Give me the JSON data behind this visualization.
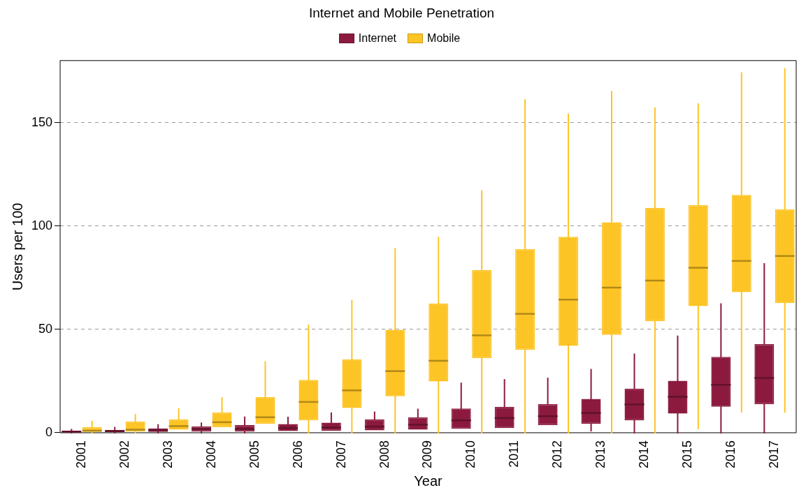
{
  "chart_data": {
    "type": "box",
    "title": "Internet and Mobile Penetration",
    "xlabel": "Year",
    "ylabel": "Users per 100",
    "categories": [
      "2001",
      "2002",
      "2003",
      "2004",
      "2005",
      "2006",
      "2007",
      "2008",
      "2009",
      "2010",
      "2011",
      "2012",
      "2013",
      "2014",
      "2015",
      "2016",
      "2017"
    ],
    "ylim": [
      0,
      180
    ],
    "yticks": [
      0,
      50,
      100,
      150
    ],
    "grid": "y",
    "legend": "top",
    "series": [
      {
        "name": "Internet",
        "color": "#8b1a3e",
        "boxes": [
          {
            "low": 0,
            "q1": 0.2,
            "median": 0.5,
            "q3": 1,
            "high": 1.5
          },
          {
            "low": 0,
            "q1": 0.3,
            "median": 0.8,
            "q3": 1.3,
            "high": 2.5
          },
          {
            "low": 0,
            "q1": 0.4,
            "median": 1.2,
            "q3": 2.1,
            "high": 3.8
          },
          {
            "low": 0,
            "q1": 0.6,
            "median": 1.8,
            "q3": 3,
            "high": 4.6
          },
          {
            "low": 0,
            "q1": 0.6,
            "median": 1.8,
            "q3": 3.8,
            "high": 7.5
          },
          {
            "low": null,
            "q1": 0.8,
            "median": 2.3,
            "q3": 4.2,
            "high": 7.4
          },
          {
            "low": null,
            "q1": 0.9,
            "median": 2.5,
            "q3": 4.9,
            "high": 9.5
          },
          {
            "low": null,
            "q1": 1.2,
            "median": 3,
            "q3": 6.5,
            "high": 9.9
          },
          {
            "low": null,
            "q1": 1.5,
            "median": 3.9,
            "q3": 7.4,
            "high": 11.3
          },
          {
            "low": null,
            "q1": 1.9,
            "median": 6,
            "q3": 11.7,
            "high": 23.9
          },
          {
            "low": null,
            "q1": 2.3,
            "median": 7.1,
            "q3": 12.6,
            "high": 25.6
          },
          {
            "low": null,
            "q1": 3.7,
            "median": 8,
            "q3": 13.8,
            "high": 26.3
          },
          {
            "low": 1,
            "q1": 4.3,
            "median": 9.6,
            "q3": 16.4,
            "high": 30.5
          },
          {
            "low": 0,
            "q1": 6,
            "median": 13.7,
            "q3": 21.3,
            "high": 38
          },
          {
            "low": 0,
            "q1": 9.3,
            "median": 17.4,
            "q3": 25.1,
            "high": 46.7
          },
          {
            "low": 0,
            "q1": 12.6,
            "median": 23.2,
            "q3": 36.7,
            "high": 62.3
          },
          {
            "low": 0,
            "q1": 13.8,
            "median": 26.5,
            "q3": 42.9,
            "high": 81.7
          }
        ]
      },
      {
        "name": "Mobile",
        "color": "#fdc425",
        "boxes": [
          {
            "low": 0,
            "q1": 0.4,
            "median": 1,
            "q3": 2.7,
            "high": 5.5
          },
          {
            "low": 0,
            "q1": 0.6,
            "median": 1.5,
            "q3": 5.4,
            "high": 8.7
          },
          {
            "low": null,
            "q1": 1.5,
            "median": 3.2,
            "q3": 6.5,
            "high": 11.5
          },
          {
            "low": null,
            "q1": 2.7,
            "median": 5.1,
            "q3": 9.8,
            "high": 16.9
          },
          {
            "low": null,
            "q1": 4.4,
            "median": 7.5,
            "q3": 17.3,
            "high": 34.2
          },
          {
            "low": 0,
            "q1": 6.1,
            "median": 14.9,
            "q3": 25.6,
            "high": 52
          },
          {
            "low": 0,
            "q1": 12,
            "median": 20.5,
            "q3": 35.5,
            "high": 64
          },
          {
            "low": 0,
            "q1": 17.6,
            "median": 29.8,
            "q3": 49.8,
            "high": 89
          },
          {
            "low": 0,
            "q1": 24.8,
            "median": 34.8,
            "q3": 62.5,
            "high": 94.4
          },
          {
            "low": 0,
            "q1": 36.1,
            "median": 47.1,
            "q3": 78.7,
            "high": 117
          },
          {
            "low": 0,
            "q1": 40.2,
            "median": 57.5,
            "q3": 88.8,
            "high": 161
          },
          {
            "low": 0,
            "q1": 42,
            "median": 64.4,
            "q3": 94.8,
            "high": 154
          },
          {
            "low": 0,
            "q1": 47.3,
            "median": 70.2,
            "q3": 101.8,
            "high": 165
          },
          {
            "low": 0,
            "q1": 53.9,
            "median": 73.6,
            "q3": 108.8,
            "high": 157
          },
          {
            "low": 2,
            "q1": 61.3,
            "median": 79.8,
            "q3": 110.1,
            "high": 159
          },
          {
            "low": 10.1,
            "q1": 68,
            "median": 83.1,
            "q3": 115,
            "high": 174
          },
          {
            "low": 10,
            "q1": 62.7,
            "median": 85.5,
            "q3": 108,
            "high": 176
          }
        ]
      }
    ]
  }
}
